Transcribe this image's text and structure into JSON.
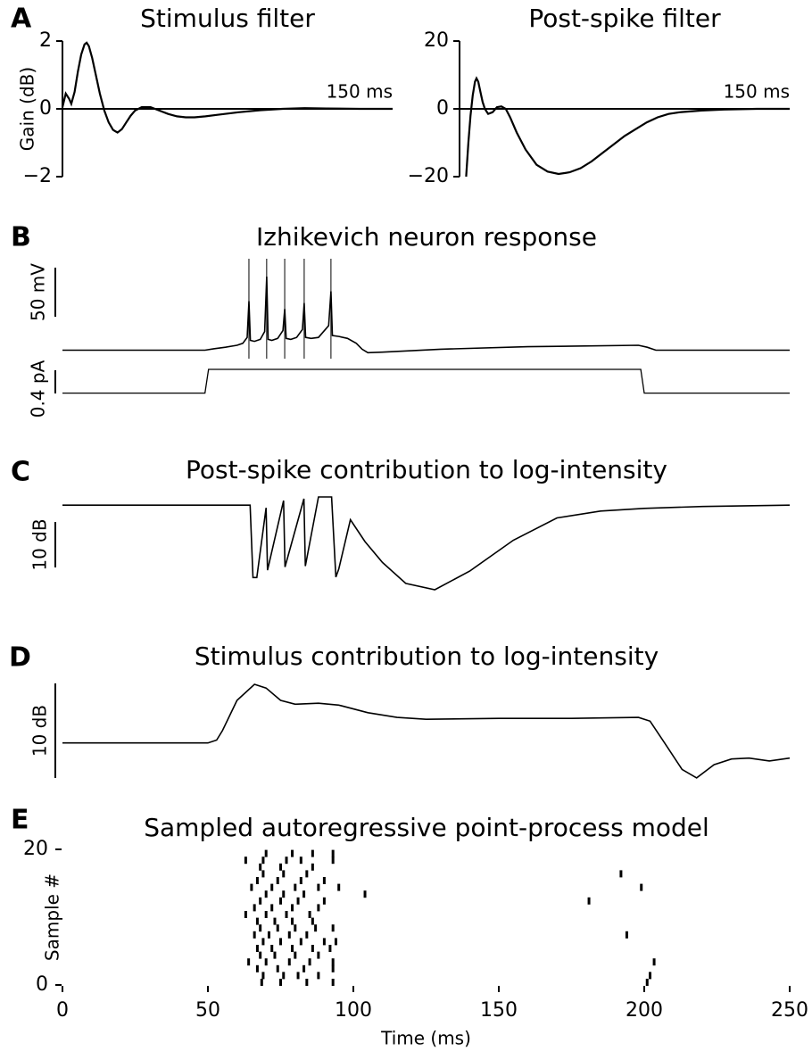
{
  "chart_data": [
    {
      "type": "line",
      "panel_label": "A",
      "title": "Stimulus filter",
      "ylabel": "Gain (dB)",
      "annotation": "150 ms",
      "xlim": [
        0,
        150
      ],
      "ylim": [
        -2,
        2
      ],
      "yticks": [
        {
          "value": -2,
          "label": "−2"
        },
        0,
        2
      ],
      "color": "#000000",
      "x": [
        0,
        1.5,
        3,
        4,
        5.5,
        7,
        8.5,
        10,
        11,
        12,
        13.5,
        15,
        17,
        19,
        21,
        23,
        25,
        27,
        29,
        31,
        33,
        36,
        40,
        44,
        48,
        52,
        56,
        60,
        65,
        70,
        80,
        90,
        100,
        110,
        120,
        135,
        150
      ],
      "values": [
        0.05,
        0.45,
        0.3,
        0.15,
        0.5,
        1.1,
        1.6,
        1.9,
        1.95,
        1.85,
        1.5,
        1.05,
        0.45,
        -0.05,
        -0.4,
        -0.62,
        -0.7,
        -0.6,
        -0.4,
        -0.2,
        -0.05,
        0.05,
        0.05,
        -0.05,
        -0.15,
        -0.22,
        -0.25,
        -0.25,
        -0.22,
        -0.18,
        -0.1,
        -0.04,
        0,
        0.02,
        0.01,
        0,
        0
      ]
    },
    {
      "type": "line",
      "title": "Post-spike filter",
      "annotation": "150 ms",
      "xlim": [
        0,
        150
      ],
      "ylim": [
        -20,
        20
      ],
      "yticks": [
        {
          "value": -20,
          "label": "−20"
        },
        0,
        20
      ],
      "color": "#000000",
      "x": [
        3,
        4,
        5,
        6,
        7,
        7.7,
        8.5,
        9.5,
        10.5,
        11.5,
        13,
        15,
        17,
        19,
        21,
        23,
        26,
        30,
        35,
        40,
        45,
        50,
        55,
        60,
        65,
        70,
        75,
        80,
        85,
        90,
        95,
        100,
        110,
        120,
        135,
        150
      ],
      "values": [
        -20,
        -10,
        -2,
        4,
        8,
        9,
        8,
        5,
        2,
        0,
        -1.5,
        -1,
        0.5,
        0.7,
        0,
        -2.5,
        -7,
        -12,
        -16.5,
        -18.5,
        -19.2,
        -18.7,
        -17.5,
        -15.5,
        -13,
        -10.5,
        -8,
        -6,
        -4,
        -2.5,
        -1.5,
        -1,
        -0.5,
        -0.2,
        0,
        0
      ]
    },
    {
      "type": "neuron",
      "panel_label": "B",
      "title": "Izhikevich neuron response",
      "xlim": [
        0,
        250
      ],
      "voltage": {
        "scalebar": {
          "value": 50,
          "label": "50 mV"
        },
        "spike_times": [
          64.1,
          70.2,
          76.4,
          83.1,
          92.3
        ],
        "x": [
          0,
          49,
          52,
          56,
          60,
          62,
          63.5,
          64.1,
          64.6,
          66,
          68,
          69.5,
          70.2,
          70.7,
          72,
          74,
          75.8,
          76.4,
          76.9,
          78.5,
          80.5,
          82.5,
          83.1,
          83.6,
          85.5,
          88,
          91.5,
          92.3,
          92.8,
          95,
          98,
          101,
          103,
          105,
          110,
          130,
          160,
          198,
          201,
          204,
          250
        ],
        "values": [
          -65,
          -65,
          -63.5,
          -62,
          -60,
          -58,
          -52,
          -15,
          -55,
          -56,
          -54,
          -46,
          10,
          -54,
          -55,
          -53,
          -45,
          -23,
          -53,
          -54,
          -52,
          -44,
          -17,
          -52,
          -53,
          -52,
          -40,
          -5,
          -50,
          -51,
          -53,
          -58,
          -64,
          -67.5,
          -67,
          -64,
          -61.5,
          -60,
          -62,
          -65,
          -65
        ]
      },
      "current": {
        "scalebar": {
          "value": 0.4,
          "label": "0.4 pA"
        },
        "x": [
          0,
          49,
          50.2,
          198.8,
          200,
          250
        ],
        "values": [
          0,
          0,
          0.41,
          0.41,
          0,
          0
        ]
      }
    },
    {
      "type": "trace",
      "panel_label": "C",
      "title": "Post-spike contribution to log-intensity",
      "xlim": [
        0,
        250
      ],
      "scalebar": {
        "value": 10,
        "label": "10 dB"
      },
      "x": [
        0,
        64.5,
        65.5,
        66.8,
        70,
        70.5,
        76,
        76.5,
        83,
        83.5,
        88,
        92.5,
        94,
        95,
        99,
        104,
        110,
        118,
        128,
        140,
        155,
        170,
        185,
        200,
        220,
        250
      ],
      "values": [
        0,
        0,
        -15.9,
        -15.9,
        -0.6,
        -14.3,
        1,
        -13.6,
        1.4,
        -13.4,
        1.8,
        1.8,
        -15.8,
        -14,
        -3.2,
        -8,
        -12.6,
        -17.2,
        -18.6,
        -14.5,
        -7.7,
        -2.8,
        -1.3,
        -0.7,
        -0.3,
        0
      ]
    },
    {
      "type": "trace",
      "panel_label": "D",
      "title": "Stimulus contribution to log-intensity",
      "xlim": [
        0,
        250
      ],
      "scalebar": {
        "value": 10,
        "label": "10 dB"
      },
      "x": [
        0,
        50,
        53,
        55,
        60,
        66,
        70,
        75,
        80,
        88,
        95,
        105,
        115,
        125,
        150,
        175,
        198,
        202,
        207,
        213,
        218,
        224,
        230,
        236,
        243,
        250
      ],
      "values": [
        0,
        0,
        0.3,
        1.3,
        4.5,
        6.2,
        5.8,
        4.5,
        4.1,
        4.2,
        4,
        3.2,
        2.7,
        2.5,
        2.6,
        2.6,
        2.7,
        2.3,
        0,
        -2.8,
        -3.7,
        -2.3,
        -1.7,
        -1.6,
        -1.9,
        -1.6
      ]
    },
    {
      "type": "raster",
      "panel_label": "E",
      "title": "Sampled autoregressive point-process model",
      "xlabel": "Time (ms)",
      "ylabel": "Sample #",
      "xlim": [
        0,
        250
      ],
      "xticks": [
        0,
        50,
        100,
        150,
        200,
        250
      ],
      "ylim": [
        0,
        20
      ],
      "yticks": [
        0,
        20
      ],
      "color": "#000000",
      "spikes": [
        {
          "sample": 0,
          "times": [
            68.5,
            75,
            84,
            93,
            201
          ]
        },
        {
          "sample": 1,
          "times": [
            69,
            76,
            81,
            88,
            202
          ]
        },
        {
          "sample": 2,
          "times": [
            67,
            74,
            83,
            93
          ]
        },
        {
          "sample": 3,
          "times": [
            64,
            70,
            78,
            85,
            93,
            203.4
          ]
        },
        {
          "sample": 4,
          "times": [
            68,
            73,
            80,
            88
          ]
        },
        {
          "sample": 5,
          "times": [
            67,
            72,
            79,
            86,
            92
          ]
        },
        {
          "sample": 6,
          "times": [
            69,
            75,
            82,
            90,
            94
          ]
        },
        {
          "sample": 7,
          "times": [
            66,
            71,
            78,
            84,
            194
          ]
        },
        {
          "sample": 8,
          "times": [
            68,
            74,
            80,
            87,
            93
          ]
        },
        {
          "sample": 9,
          "times": [
            67,
            73,
            79,
            86
          ]
        },
        {
          "sample": 10,
          "times": [
            63,
            70,
            77,
            85
          ]
        },
        {
          "sample": 11,
          "times": [
            66,
            72,
            79,
            88
          ]
        },
        {
          "sample": 12,
          "times": [
            68,
            75,
            81,
            90,
            181
          ]
        },
        {
          "sample": 13,
          "times": [
            70,
            76,
            83,
            104
          ]
        },
        {
          "sample": 14,
          "times": [
            65,
            72,
            80,
            88,
            95,
            199
          ]
        },
        {
          "sample": 15,
          "times": [
            67,
            74,
            82,
            90
          ]
        },
        {
          "sample": 16,
          "times": [
            69,
            76,
            84,
            192
          ]
        },
        {
          "sample": 17,
          "times": [
            68,
            75,
            86
          ]
        },
        {
          "sample": 18,
          "times": [
            63,
            69,
            77,
            82,
            93
          ]
        },
        {
          "sample": 19,
          "times": [
            70,
            79,
            86,
            93
          ]
        }
      ]
    }
  ]
}
